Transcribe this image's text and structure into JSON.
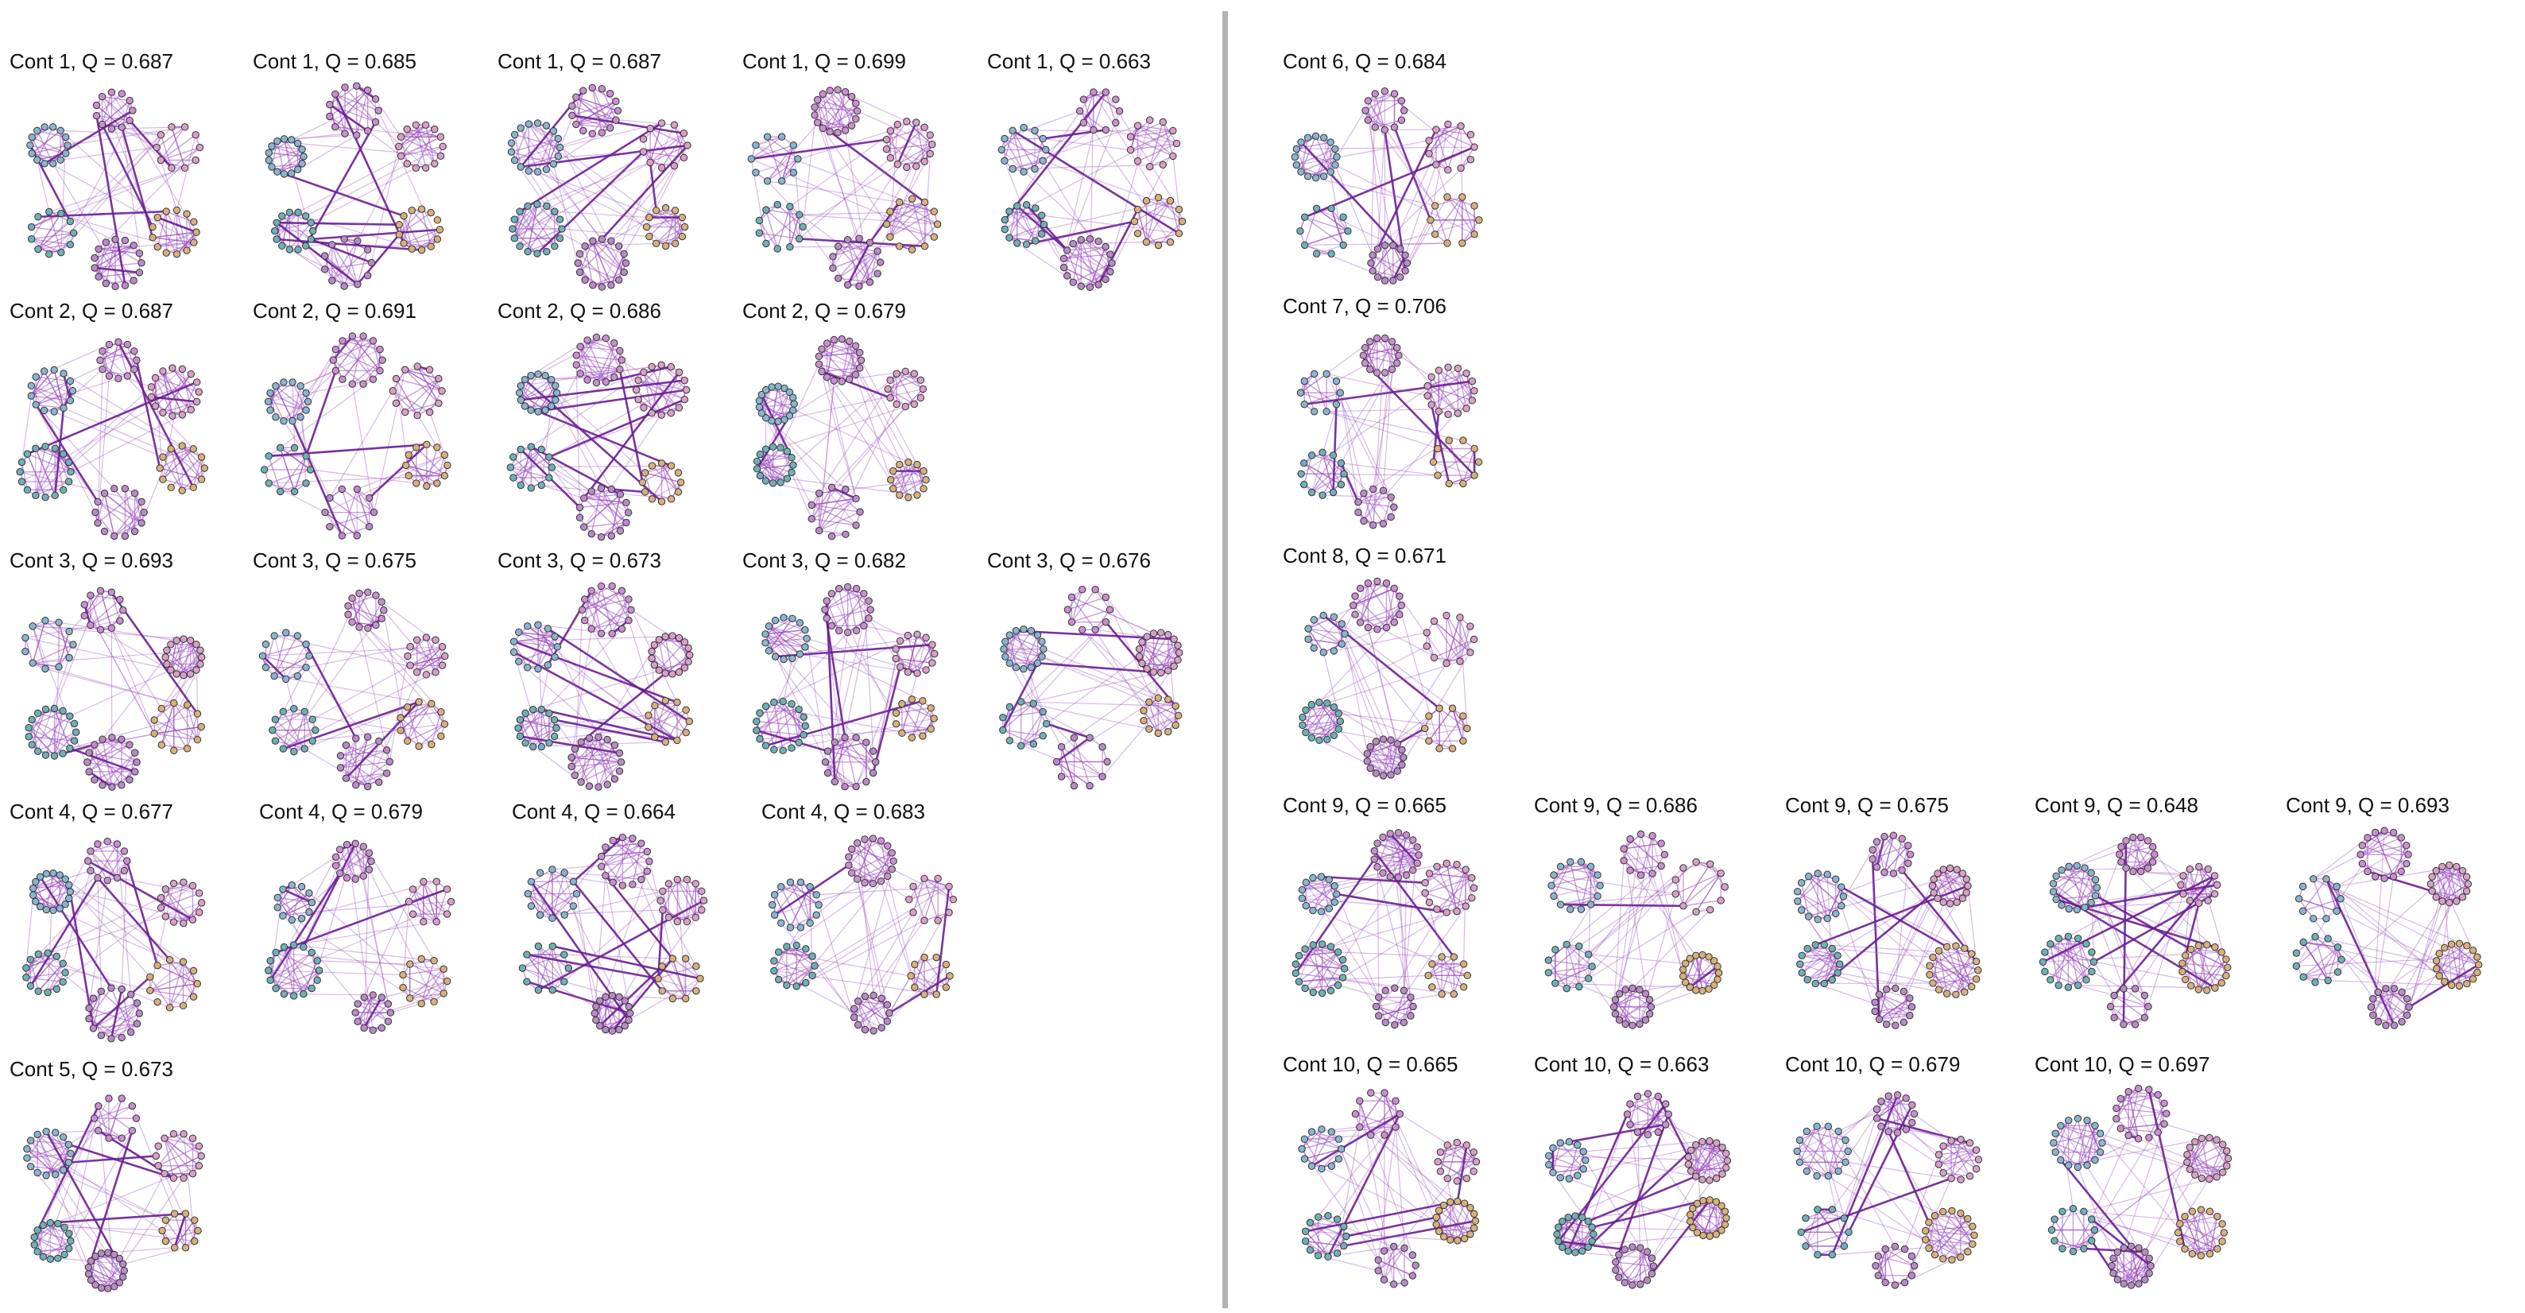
{
  "panels": [
    {
      "label": "Cont 1, Q = 0.687"
    },
    {
      "label": "Cont 1, Q = 0.685"
    },
    {
      "label": "Cont 1, Q = 0.687"
    },
    {
      "label": "Cont 1, Q = 0.699"
    },
    {
      "label": "Cont 1, Q = 0.663"
    },
    {
      "label": "Cont 2, Q = 0.687"
    },
    {
      "label": "Cont 2, Q = 0.691"
    },
    {
      "label": "Cont 2, Q = 0.686"
    },
    {
      "label": "Cont 2, Q = 0.679"
    },
    {
      "label": "Cont 3, Q = 0.693"
    },
    {
      "label": "Cont 3, Q = 0.675"
    },
    {
      "label": "Cont 3, Q = 0.673"
    },
    {
      "label": "Cont 3, Q = 0.682"
    },
    {
      "label": "Cont 3, Q = 0.676"
    },
    {
      "label": "Cont 4, Q = 0.677"
    },
    {
      "label": "Cont 4, Q = 0.679"
    },
    {
      "label": "Cont 4, Q = 0.664"
    },
    {
      "label": "Cont 4, Q = 0.683"
    },
    {
      "label": "Cont 5, Q = 0.673"
    },
    {
      "label": "Cont 6, Q = 0.684"
    },
    {
      "label": "Cont 7, Q = 0.706"
    },
    {
      "label": "Cont 8, Q = 0.671"
    },
    {
      "label": "Cont 9, Q = 0.665"
    },
    {
      "label": "Cont 9, Q = 0.686"
    },
    {
      "label": "Cont 9, Q = 0.675"
    },
    {
      "label": "Cont 9, Q = 0.648"
    },
    {
      "label": "Cont 9, Q = 0.693"
    },
    {
      "label": "Cont 10, Q = 0.665"
    },
    {
      "label": "Cont 10, Q = 0.663"
    },
    {
      "label": "Cont 10, Q = 0.679"
    },
    {
      "label": "Cont 10, Q = 0.697"
    }
  ],
  "colors": {
    "edge": "#9a4fc0",
    "edge_strong": "#6a1d95",
    "node_edge": "#333333",
    "cluster_node_colors": [
      "#c98fd0",
      "#d8a0c8",
      "#d7b07a",
      "#b98ac8",
      "#6fb0b8",
      "#8ab4d0"
    ],
    "divider": "#b3b3b3"
  }
}
